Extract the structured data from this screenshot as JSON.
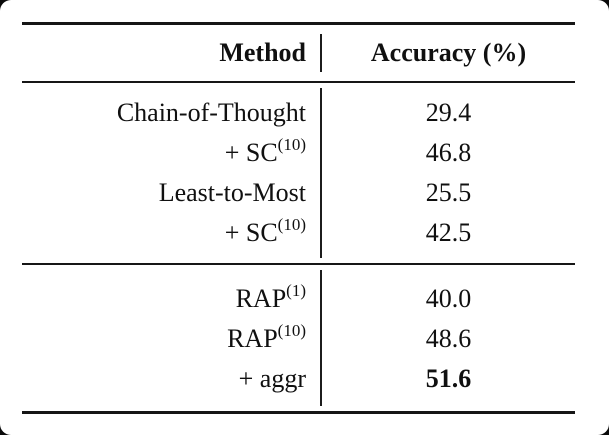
{
  "page": {
    "background_color": "#0a0a0a",
    "card_background_color": "#ffffff",
    "text_color": "#101010",
    "rule_color": "#161616"
  },
  "table": {
    "columns": [
      {
        "label": "Method"
      },
      {
        "label": "Accuracy (%)"
      }
    ],
    "sections": [
      {
        "rows": [
          {
            "method": "Chain-of-Thought",
            "sup": "",
            "accuracy": "29.4"
          },
          {
            "method": "+ SC",
            "sup": "(10)",
            "accuracy": "46.8"
          },
          {
            "method": "Least-to-Most",
            "sup": "",
            "accuracy": "25.5"
          },
          {
            "method": "+ SC",
            "sup": "(10)",
            "accuracy": "42.5"
          }
        ]
      },
      {
        "rows": [
          {
            "method": "RAP",
            "sup": "(1)",
            "accuracy": "40.0"
          },
          {
            "method": "RAP",
            "sup": "(10)",
            "accuracy": "48.6"
          },
          {
            "method": "+ aggr",
            "sup": "",
            "accuracy": "51.6",
            "emphasis": "bold"
          }
        ]
      }
    ]
  }
}
